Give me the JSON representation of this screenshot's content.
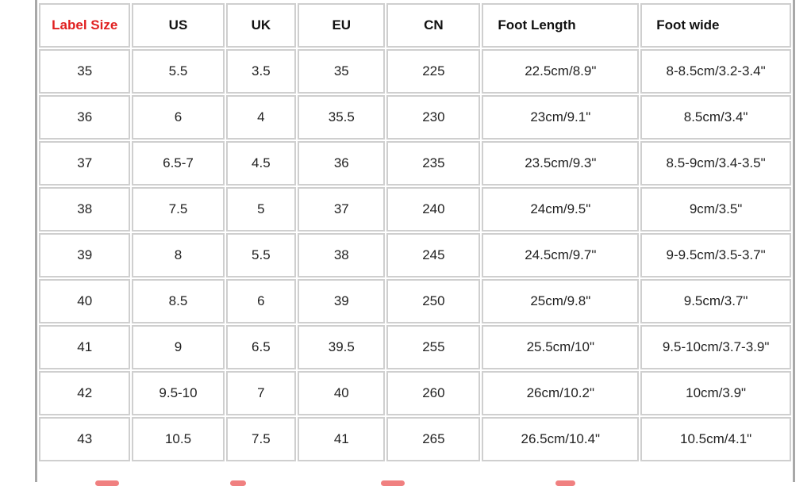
{
  "headers": [
    "Label Size",
    "US",
    "UK",
    "EU",
    "CN",
    "Foot Length",
    "Foot wide"
  ],
  "rows": [
    [
      "35",
      "5.5",
      "3.5",
      "35",
      "225",
      "22.5cm/8.9\"",
      "8-8.5cm/3.2-3.4\""
    ],
    [
      "36",
      "6",
      "4",
      "35.5",
      "230",
      "23cm/9.1\"",
      "8.5cm/3.4\""
    ],
    [
      "37",
      "6.5-7",
      "4.5",
      "36",
      "235",
      "23.5cm/9.3\"",
      "8.5-9cm/3.4-3.5\""
    ],
    [
      "38",
      "7.5",
      "5",
      "37",
      "240",
      "24cm/9.5\"",
      "9cm/3.5\""
    ],
    [
      "39",
      "8",
      "5.5",
      "38",
      "245",
      "24.5cm/9.7\"",
      "9-9.5cm/3.5-3.7\""
    ],
    [
      "40",
      "8.5",
      "6",
      "39",
      "250",
      "25cm/9.8\"",
      "9.5cm/3.7\""
    ],
    [
      "41",
      "9",
      "6.5",
      "39.5",
      "255",
      "25.5cm/10\"",
      "9.5-10cm/3.7-3.9\""
    ],
    [
      "42",
      "9.5-10",
      "7",
      "40",
      "260",
      "26cm/10.2\"",
      "10cm/3.9\""
    ],
    [
      "43",
      "10.5",
      "7.5",
      "41",
      "265",
      "26.5cm/10.4\"",
      "10.5cm/4.1\""
    ]
  ],
  "colors": {
    "header_highlight": "#e02020",
    "border": "#cfcfcf"
  }
}
